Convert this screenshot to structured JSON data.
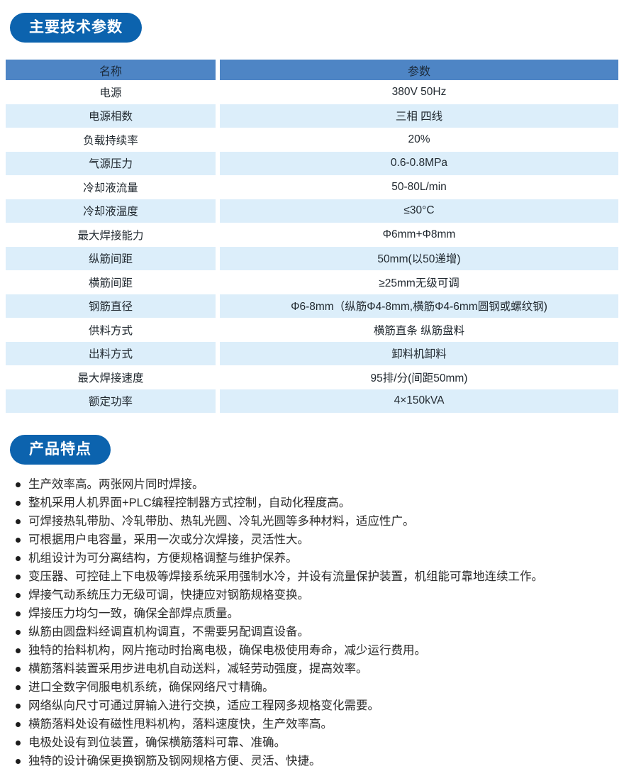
{
  "colors": {
    "badge_bg": "#0c63ae",
    "badge_text": "#ffffff",
    "table_header_bg": "#4e85c5",
    "table_header_text": "#1b2a3a",
    "row_alt_bg": "#dceefa",
    "body_text": "#212930",
    "feature_text": "#2b2b2b"
  },
  "specs": {
    "badge_label": "主要技术参数",
    "table": {
      "headers": [
        "名称",
        "参数"
      ],
      "rows": [
        [
          "电源",
          "380V 50Hz"
        ],
        [
          "电源相数",
          "三相 四线"
        ],
        [
          "负载持续率",
          "20%"
        ],
        [
          "气源压力",
          "0.6-0.8MPa"
        ],
        [
          "冷却液流量",
          "50-80L/min"
        ],
        [
          "冷却液温度",
          "≤30°C"
        ],
        [
          "最大焊接能力",
          "Φ6mm+Φ8mm"
        ],
        [
          "纵筋间距",
          "50mm(以50递增)"
        ],
        [
          "横筋间距",
          "≥25mm无级可调"
        ],
        [
          "钢筋直径",
          "Φ6-8mm（纵筋Φ4-8mm,横筋Φ4-6mm圆钢或螺纹钢)"
        ],
        [
          "供料方式",
          "横筋直条 纵筋盘料"
        ],
        [
          "出料方式",
          "卸料机卸料"
        ],
        [
          "最大焊接速度",
          "95排/分(间距50mm)"
        ],
        [
          "额定功率",
          "4×150kVA"
        ]
      ]
    }
  },
  "features": {
    "badge_label": "产品特点",
    "items": [
      "生产效率高。两张网片同时焊接。",
      "整机采用人机界面+PLC编程控制器方式控制，自动化程度高。",
      "可焊接热轧带肋、冷轧带肋、热轧光圆、冷轧光圆等多种材料，适应性广。",
      "可根据用户电容量，采用一次或分次焊接，灵活性大。",
      "机组设计为可分离结构，方便规格调整与维护保养。",
      "变压器、可控硅上下电极等焊接系统采用强制水冷，并设有流量保护装置，机组能可靠地连续工作。",
      "焊接气动系统压力无级可调，快捷应对钢筋规格变换。",
      "焊接压力均匀一致，确保全部焊点质量。",
      "纵筋由圆盘料经调直机构调直，不需要另配调直设备。",
      "独特的抬料机构，网片拖动时抬离电极，确保电极使用寿命，减少运行费用。",
      "横筋落料装置采用步进电机自动送料，减轻劳动强度，提高效率。",
      "进口全数字伺服电机系统，确保网络尺寸精确。",
      "网络纵向尺寸可通过屏输入进行交换，适应工程网多规格变化需要。",
      "横筋落料处设有磁性甩料机构，落料速度快，生产效率高。",
      "电极处设有到位装置，确保横筋落料可靠、准确。",
      "独特的设计确保更换钢筋及钢网规格方便、灵活、快捷。"
    ]
  }
}
